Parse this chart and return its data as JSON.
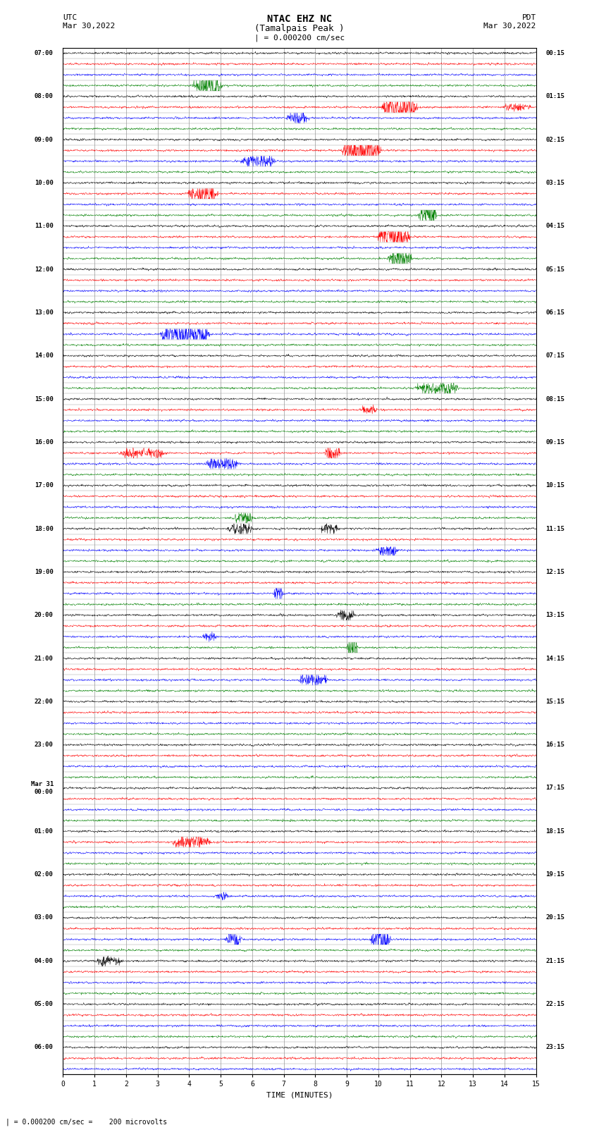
{
  "title_line1": "NTAC EHZ NC",
  "title_line2": "(Tamalpais Peak )",
  "scale_text": "| = 0.000200 cm/sec",
  "footer_text": "| = 0.000200 cm/sec =    200 microvolts",
  "xlabel": "TIME (MINUTES)",
  "background_color": "#ffffff",
  "trace_colors": [
    "black",
    "red",
    "blue",
    "green"
  ],
  "grid_color": "#999999",
  "figwidth": 8.5,
  "figheight": 16.13,
  "n_traces": 95,
  "left_times_utc": [
    "07:00",
    "",
    "",
    "",
    "08:00",
    "",
    "",
    "",
    "09:00",
    "",
    "",
    "",
    "10:00",
    "",
    "",
    "",
    "11:00",
    "",
    "",
    "",
    "12:00",
    "",
    "",
    "",
    "13:00",
    "",
    "",
    "",
    "14:00",
    "",
    "",
    "",
    "15:00",
    "",
    "",
    "",
    "16:00",
    "",
    "",
    "",
    "17:00",
    "",
    "",
    "",
    "18:00",
    "",
    "",
    "",
    "19:00",
    "",
    "",
    "",
    "20:00",
    "",
    "",
    "",
    "21:00",
    "",
    "",
    "",
    "22:00",
    "",
    "",
    "",
    "23:00",
    "",
    "",
    "",
    "Mar 31\n00:00",
    "",
    "",
    "",
    "01:00",
    "",
    "",
    "",
    "02:00",
    "",
    "",
    "",
    "03:00",
    "",
    "",
    "",
    "04:00",
    "",
    "",
    "",
    "05:00",
    "",
    "",
    "",
    "06:00",
    "",
    ""
  ],
  "right_times_pdt": [
    "00:15",
    "",
    "",
    "",
    "01:15",
    "",
    "",
    "",
    "02:15",
    "",
    "",
    "",
    "03:15",
    "",
    "",
    "",
    "04:15",
    "",
    "",
    "",
    "05:15",
    "",
    "",
    "",
    "06:15",
    "",
    "",
    "",
    "07:15",
    "",
    "",
    "",
    "08:15",
    "",
    "",
    "",
    "09:15",
    "",
    "",
    "",
    "10:15",
    "",
    "",
    "",
    "11:15",
    "",
    "",
    "",
    "12:15",
    "",
    "",
    "",
    "13:15",
    "",
    "",
    "",
    "14:15",
    "",
    "",
    "",
    "15:15",
    "",
    "",
    "",
    "16:15",
    "",
    "",
    "",
    "17:15",
    "",
    "",
    "",
    "18:15",
    "",
    "",
    "",
    "19:15",
    "",
    "",
    "",
    "20:15",
    "",
    "",
    "",
    "21:15",
    "",
    "",
    "",
    "22:15",
    "",
    "",
    "",
    "23:15",
    "",
    ""
  ]
}
